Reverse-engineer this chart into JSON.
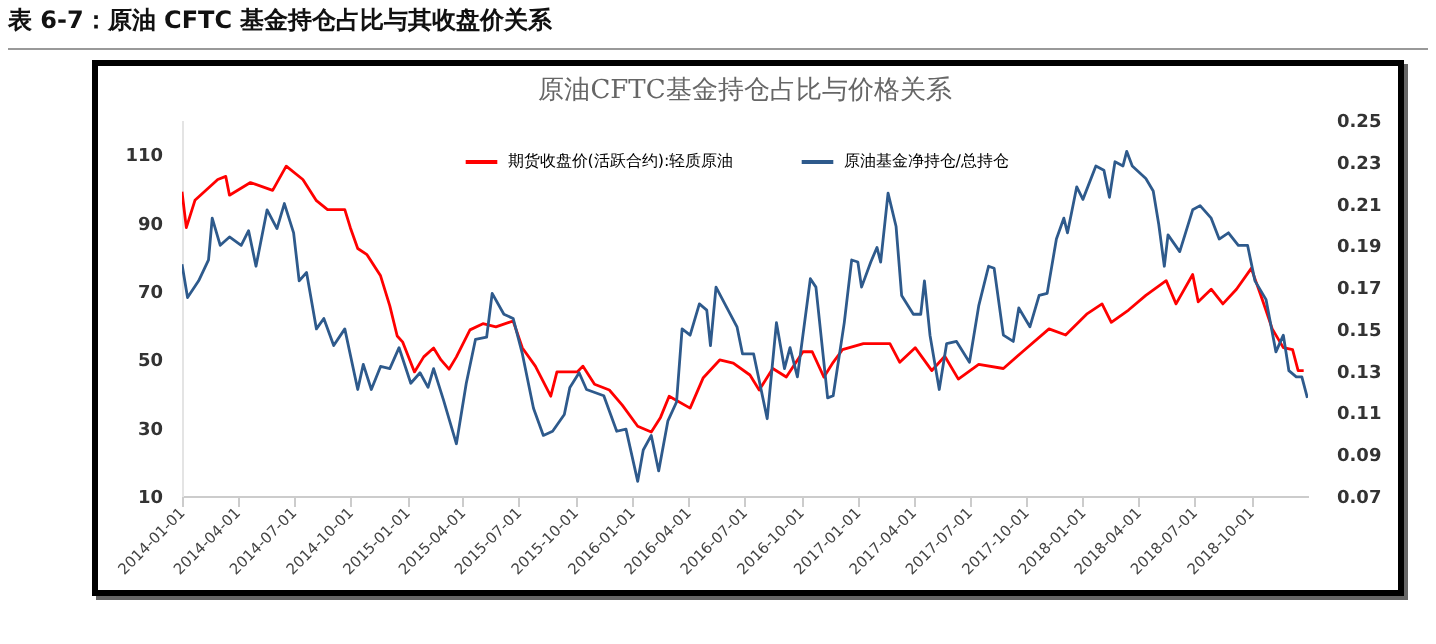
{
  "chart_data": {
    "type": "line",
    "title": "表 6-7：原油 CFTC 基金持仓占比与其收盘价关系",
    "subtitle": "原油CFTC基金持仓占比与价格关系",
    "legend": "top",
    "grid": false,
    "xlim": [
      "2014-01-01",
      "2019-01-01"
    ],
    "xticks": [
      "2014-01-01",
      "2014-04-01",
      "2014-07-01",
      "2014-10-01",
      "2015-01-01",
      "2015-04-01",
      "2015-07-01",
      "2015-10-01",
      "2016-01-01",
      "2016-04-01",
      "2016-07-01",
      "2016-10-01",
      "2017-01-01",
      "2017-04-01",
      "2017-07-01",
      "2017-10-01",
      "2018-01-01",
      "2018-04-01",
      "2018-07-01",
      "2018-10-01"
    ],
    "ylim": [
      10,
      120
    ],
    "yticks": [
      10,
      30,
      50,
      70,
      90,
      110
    ],
    "y2lim": [
      0.07,
      0.25
    ],
    "y2ticks": [
      0.07,
      0.09,
      0.11,
      0.13,
      0.15,
      0.17,
      0.19,
      0.21,
      0.23,
      0.25
    ],
    "series": [
      {
        "name": "期货收盘价(活跃合约):轻质原油",
        "color": "#ff0000",
        "x": [
          "2014-01-01",
          "2014-01-08",
          "2014-01-22",
          "2014-02-28",
          "2014-03-13",
          "2014-03-19",
          "2014-04-22",
          "2014-05-28",
          "2014-06-19",
          "2014-07-16",
          "2014-08-07",
          "2014-08-25",
          "2014-09-22",
          "2014-10-01",
          "2014-10-13",
          "2014-10-28",
          "2014-11-19",
          "2014-12-04",
          "2014-12-16",
          "2014-12-25",
          "2015-01-13",
          "2015-01-28",
          "2015-02-13",
          "2015-02-25",
          "2015-03-10",
          "2015-03-22",
          "2015-04-13",
          "2015-05-04",
          "2015-05-25",
          "2015-06-22",
          "2015-07-07",
          "2015-07-28",
          "2015-08-22",
          "2015-09-01",
          "2015-10-04",
          "2015-10-13",
          "2015-11-01",
          "2015-11-25",
          "2015-12-16",
          "2016-01-10",
          "2016-02-01",
          "2016-02-16",
          "2016-03-01",
          "2016-04-04",
          "2016-04-25",
          "2016-05-22",
          "2016-06-13",
          "2016-07-10",
          "2016-07-25",
          "2016-08-16",
          "2016-09-07",
          "2016-10-04",
          "2016-10-19",
          "2016-11-07",
          "2016-11-22",
          "2016-12-07",
          "2017-01-10",
          "2017-02-22",
          "2017-03-10",
          "2017-04-04",
          "2017-05-01",
          "2017-05-22",
          "2017-06-13",
          "2017-07-16",
          "2017-08-25",
          "2017-09-25",
          "2017-11-07",
          "2017-12-04",
          "2018-01-07",
          "2018-02-01",
          "2018-02-16",
          "2018-03-16",
          "2018-04-13",
          "2018-05-16",
          "2018-06-01",
          "2018-06-28",
          "2018-07-07",
          "2018-07-28",
          "2018-08-16",
          "2018-09-07",
          "2018-10-01",
          "2018-10-19",
          "2018-11-04",
          "2018-11-22",
          "2018-12-07",
          "2018-12-16",
          "2018-12-25"
        ],
        "values": [
          99,
          88.5,
          96.5,
          102.6,
          103.5,
          98,
          101.7,
          99.4,
          106.5,
          102.6,
          96.4,
          93.8,
          93.8,
          88.5,
          82.4,
          80.6,
          74.4,
          65.6,
          56.8,
          55,
          46.3,
          50.7,
          53.3,
          49.8,
          47.1,
          50.7,
          58.6,
          60.4,
          59.5,
          61.2,
          53.3,
          48,
          39.2,
          46.3,
          46.3,
          48,
          42.7,
          41,
          36.6,
          30.4,
          28.7,
          33,
          39.2,
          35.7,
          44.5,
          49.8,
          48.9,
          45.4,
          41,
          47.3,
          44.8,
          52.2,
          52.2,
          44.8,
          49.1,
          52.8,
          54.6,
          54.6,
          49.1,
          53.4,
          46.7,
          50.9,
          44.2,
          48.5,
          47.3,
          52.2,
          58.9,
          57.1,
          63.2,
          66.2,
          60.8,
          64.4,
          68.7,
          73,
          66.2,
          74.8,
          66.8,
          70.5,
          66.2,
          70.5,
          76.6,
          67.4,
          58.9,
          53.4,
          52.8,
          46.7,
          46.7
        ]
      },
      {
        "name": "原油基金净持仓/总持仓",
        "color": "#2e5a8c",
        "axis": "y2",
        "x": [
          "2014-01-01",
          "2014-01-10",
          "2014-01-28",
          "2014-02-13",
          "2014-02-19",
          "2014-03-04",
          "2014-03-19",
          "2014-04-07",
          "2014-04-19",
          "2014-05-01",
          "2014-05-19",
          "2014-06-04",
          "2014-06-16",
          "2014-07-01",
          "2014-07-10",
          "2014-07-22",
          "2014-08-07",
          "2014-08-19",
          "2014-09-04",
          "2014-09-22",
          "2014-10-13",
          "2014-10-22",
          "2014-11-04",
          "2014-11-19",
          "2014-12-04",
          "2014-12-19",
          "2015-01-07",
          "2015-01-22",
          "2015-02-04",
          "2015-02-13",
          "2015-03-01",
          "2015-03-22",
          "2015-04-07",
          "2015-04-22",
          "2015-05-10",
          "2015-05-19",
          "2015-06-07",
          "2015-06-22",
          "2015-07-07",
          "2015-07-25",
          "2015-08-10",
          "2015-08-25",
          "2015-09-13",
          "2015-09-22",
          "2015-10-07",
          "2015-10-19",
          "2015-11-16",
          "2015-12-07",
          "2015-12-22",
          "2016-01-10",
          "2016-01-19",
          "2016-02-01",
          "2016-02-13",
          "2016-02-28",
          "2016-03-13",
          "2016-03-22",
          "2016-04-04",
          "2016-04-19",
          "2016-05-01",
          "2016-05-07",
          "2016-05-16",
          "2016-06-01",
          "2016-06-19",
          "2016-06-28",
          "2016-07-16",
          "2016-08-07",
          "2016-08-22",
          "2016-09-04",
          "2016-09-13",
          "2016-09-25",
          "2016-10-16",
          "2016-10-25",
          "2016-11-13",
          "2016-11-22",
          "2016-12-10",
          "2016-12-22",
          "2017-01-01",
          "2017-01-07",
          "2017-01-22",
          "2017-02-01",
          "2017-02-07",
          "2017-02-19",
          "2017-03-04",
          "2017-03-13",
          "2017-04-01",
          "2017-04-13",
          "2017-04-19",
          "2017-04-28",
          "2017-05-13",
          "2017-05-25",
          "2017-06-10",
          "2017-07-01",
          "2017-07-16",
          "2017-08-01",
          "2017-08-10",
          "2017-08-25",
          "2017-09-10",
          "2017-09-19",
          "2017-10-07",
          "2017-10-22",
          "2017-11-04",
          "2017-11-19",
          "2017-12-01",
          "2017-12-07",
          "2017-12-22",
          "2018-01-01",
          "2018-01-22",
          "2018-02-04",
          "2018-02-13",
          "2018-02-22",
          "2018-03-07",
          "2018-03-13",
          "2018-03-22",
          "2018-04-13",
          "2018-04-25",
          "2018-05-04",
          "2018-05-13",
          "2018-05-19",
          "2018-06-07",
          "2018-06-28",
          "2018-07-10",
          "2018-07-28",
          "2018-08-10",
          "2018-08-25",
          "2018-09-10",
          "2018-09-25",
          "2018-10-07",
          "2018-10-25",
          "2018-11-10",
          "2018-11-22",
          "2018-12-01",
          "2018-12-13",
          "2018-12-22",
          "2018-12-31"
        ],
        "values": [
          0.181,
          0.165,
          0.173,
          0.183,
          0.203,
          0.19,
          0.194,
          0.19,
          0.197,
          0.18,
          0.207,
          0.198,
          0.21,
          0.196,
          0.173,
          0.177,
          0.15,
          0.155,
          0.142,
          0.15,
          0.121,
          0.133,
          0.121,
          0.132,
          0.131,
          0.141,
          0.124,
          0.129,
          0.122,
          0.131,
          0.116,
          0.095,
          0.124,
          0.145,
          0.146,
          0.167,
          0.157,
          0.155,
          0.138,
          0.112,
          0.099,
          0.101,
          0.109,
          0.122,
          0.129,
          0.121,
          0.118,
          0.101,
          0.102,
          0.077,
          0.092,
          0.099,
          0.082,
          0.106,
          0.115,
          0.15,
          0.147,
          0.162,
          0.159,
          0.142,
          0.17,
          0.161,
          0.151,
          0.138,
          0.138,
          0.107,
          0.153,
          0.131,
          0.141,
          0.127,
          0.174,
          0.17,
          0.117,
          0.118,
          0.153,
          0.183,
          0.182,
          0.17,
          0.182,
          0.189,
          0.182,
          0.215,
          0.199,
          0.166,
          0.157,
          0.157,
          0.173,
          0.147,
          0.121,
          0.143,
          0.144,
          0.134,
          0.161,
          0.18,
          0.179,
          0.147,
          0.144,
          0.16,
          0.151,
          0.166,
          0.167,
          0.193,
          0.203,
          0.196,
          0.218,
          0.212,
          0.228,
          0.226,
          0.213,
          0.23,
          0.228,
          0.235,
          0.228,
          0.222,
          0.216,
          0.2,
          0.18,
          0.195,
          0.187,
          0.207,
          0.209,
          0.203,
          0.193,
          0.196,
          0.19,
          0.19,
          0.173,
          0.164,
          0.139,
          0.147,
          0.13,
          0.127,
          0.127,
          0.117
        ]
      }
    ]
  }
}
